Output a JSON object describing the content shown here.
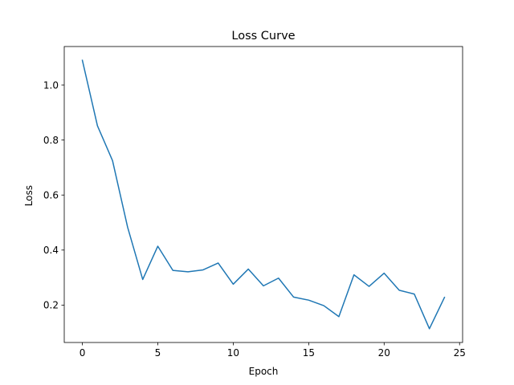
{
  "chart_data": {
    "type": "line",
    "title": "Loss Curve",
    "xlabel": "Epoch",
    "ylabel": "Loss",
    "xlim": [
      -1.2,
      25.2
    ],
    "ylim": [
      0.064,
      1.14
    ],
    "xticks": [
      0,
      5,
      10,
      15,
      20,
      25
    ],
    "yticks": [
      0.2,
      0.4,
      0.6,
      0.8,
      1.0
    ],
    "xtick_labels": [
      "0",
      "5",
      "10",
      "15",
      "20",
      "25"
    ],
    "ytick_labels": [
      "0.2",
      "0.4",
      "0.6",
      "0.8",
      "1.0"
    ],
    "grid": false,
    "series": [
      {
        "color": "#1f77b4",
        "x": [
          0,
          1,
          2,
          3,
          4,
          5,
          6,
          7,
          8,
          9,
          10,
          11,
          12,
          13,
          14,
          15,
          16,
          17,
          18,
          19,
          20,
          21,
          22,
          23,
          24
        ],
        "y": [
          1.09,
          0.852,
          0.725,
          0.483,
          0.293,
          0.414,
          0.326,
          0.321,
          0.328,
          0.353,
          0.276,
          0.331,
          0.27,
          0.298,
          0.229,
          0.218,
          0.198,
          0.158,
          0.31,
          0.268,
          0.316,
          0.254,
          0.24,
          0.114,
          0.228
        ]
      }
    ]
  }
}
